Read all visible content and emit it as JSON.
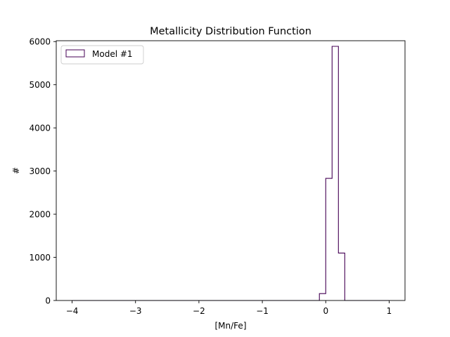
{
  "chart_data": {
    "type": "histogram",
    "title": "Metallicity Distribution Function",
    "xlabel": "[Mn/Fe]",
    "ylabel": "#",
    "xlim": [
      -4.25,
      1.25
    ],
    "ylim": [
      0,
      6020
    ],
    "xticks": [
      -4,
      -3,
      -2,
      -1,
      0,
      1
    ],
    "yticks": [
      0,
      1000,
      2000,
      3000,
      4000,
      5000,
      6000
    ],
    "xtick_labels": [
      "−4",
      "−3",
      "−2",
      "−1",
      "0",
      "1"
    ],
    "ytick_labels": [
      "0",
      "1000",
      "2000",
      "3000",
      "4000",
      "5000",
      "6000"
    ],
    "grid": false,
    "legend_location": "upper left",
    "series": [
      {
        "name": "Model #1",
        "color": "#440154",
        "histtype": "step",
        "bin_edges": [
          -4.0,
          -3.9,
          -3.8,
          -3.7,
          -3.6,
          -3.5,
          -3.4,
          -3.3,
          -3.2,
          -3.1,
          -3.0,
          -2.9,
          -2.8,
          -2.7,
          -2.6,
          -2.5,
          -2.4,
          -2.3,
          -2.2,
          -2.1,
          -2.0,
          -1.9,
          -1.8,
          -1.7,
          -1.6,
          -1.5,
          -1.4,
          -1.3,
          -1.2,
          -1.1,
          -1.0,
          -0.9,
          -0.8,
          -0.7,
          -0.6,
          -0.5,
          -0.4,
          -0.3,
          -0.2,
          -0.1,
          0.0,
          0.1,
          0.2,
          0.3,
          0.4,
          0.5,
          0.6,
          0.7,
          0.8,
          0.9,
          1.0
        ],
        "counts": [
          0,
          0,
          0,
          0,
          0,
          0,
          0,
          0,
          0,
          0,
          0,
          0,
          0,
          0,
          0,
          0,
          0,
          0,
          0,
          0,
          0,
          0,
          0,
          0,
          0,
          0,
          0,
          0,
          0,
          0,
          0,
          0,
          0,
          0,
          0,
          0,
          0,
          0,
          0,
          160,
          2830,
          5890,
          1100,
          0,
          0,
          0,
          0,
          0,
          0,
          0
        ]
      }
    ]
  }
}
